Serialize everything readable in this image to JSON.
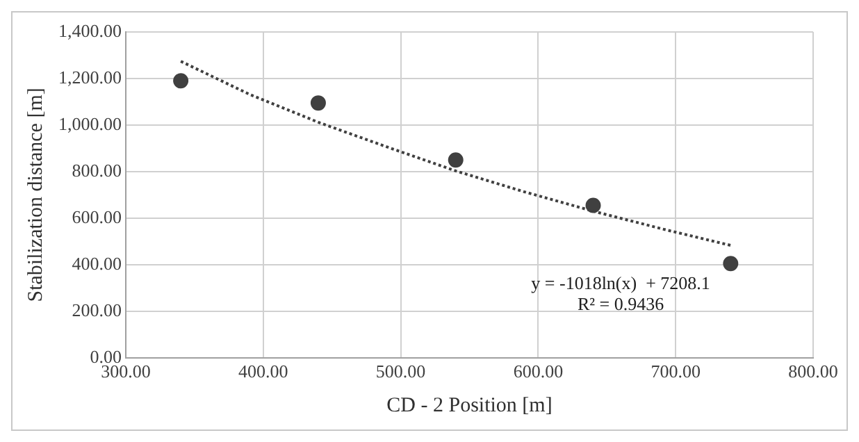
{
  "chart_data": {
    "type": "scatter",
    "xlabel": "CD - 2 Position [m]",
    "ylabel": "Stabilization distance [m]",
    "series": [
      {
        "type": "scatter",
        "color": "#404040",
        "x": [
          340,
          440,
          540,
          640,
          740
        ],
        "values": [
          1190,
          1095,
          850,
          655,
          405
        ],
        "marker": "circle"
      },
      {
        "type": "line",
        "color": "#404040",
        "x": [
          340,
          390,
          440,
          490,
          540,
          590,
          640,
          690,
          740
        ],
        "values": [
          1274,
          1132,
          1012,
          906,
          803,
          713,
          630,
          554,
          483
        ],
        "marker": "none",
        "line_style": "dotted"
      }
    ],
    "xlim": [
      300,
      800
    ],
    "xticks": [
      {
        "value": 300,
        "label": "300.00"
      },
      {
        "value": 400,
        "label": "400.00"
      },
      {
        "value": 500,
        "label": "500.00"
      },
      {
        "value": 600,
        "label": "600.00"
      },
      {
        "value": 700,
        "label": "700.00"
      },
      {
        "value": 800,
        "label": "800.00"
      }
    ],
    "ylim": [
      0,
      1400
    ],
    "yticks": [
      {
        "value": 0,
        "label": "0.00"
      },
      {
        "value": 200,
        "label": "200.00"
      },
      {
        "value": 400,
        "label": "400.00"
      },
      {
        "value": 600,
        "label": "600.00"
      },
      {
        "value": 800,
        "label": "800.00"
      },
      {
        "value": 1000,
        "label": "1,000.00"
      },
      {
        "value": 1200,
        "label": "1,200.00"
      },
      {
        "value": 1400,
        "label": "1,400.00"
      }
    ],
    "grid": true,
    "legend": false,
    "annotations": [
      "y = -1018ln(x)  + 7208.1",
      "R² = 0.9436"
    ]
  }
}
